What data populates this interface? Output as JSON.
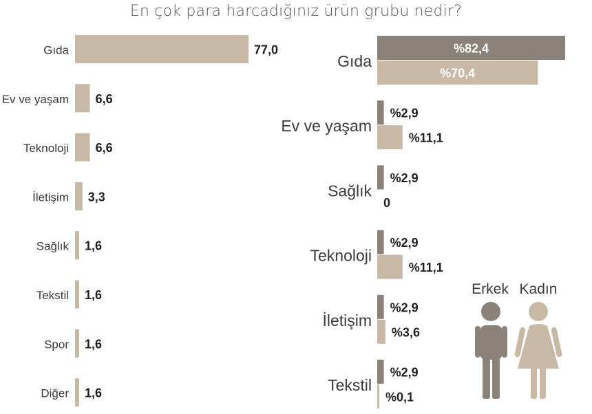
{
  "title": "En çok para harcadığınız ürün grubu nedir?",
  "colors": {
    "male": "#8a8278",
    "female": "#c8b9a6"
  },
  "chart_data": [
    {
      "type": "bar",
      "orientation": "horizontal",
      "categories": [
        "Gıda",
        "Ev ve yaşam",
        "Teknoloji",
        "İletişim",
        "Sağlık",
        "Tekstil",
        "Spor",
        "Diğer"
      ],
      "values": [
        77.0,
        6.6,
        6.6,
        3.3,
        1.6,
        1.6,
        1.6,
        1.6
      ],
      "labels": [
        "77,0",
        "6,6",
        "6,6",
        "3,3",
        "1,6",
        "1,6",
        "1,6",
        "1,6"
      ],
      "xlim": [
        0,
        77
      ]
    },
    {
      "type": "bar",
      "orientation": "horizontal",
      "categories": [
        "Gıda",
        "Ev ve yaşam",
        "Sağlık",
        "Teknoloji",
        "İletişim",
        "Tekstil"
      ],
      "series": [
        {
          "name": "Erkek",
          "values": [
            82.4,
            2.9,
            2.9,
            2.9,
            2.9,
            2.9
          ],
          "labels": [
            "%82,4",
            "%2,9",
            "%2,9",
            "%2,9",
            "%2,9",
            "%2,9"
          ]
        },
        {
          "name": "Kadın",
          "values": [
            70.4,
            11.1,
            0,
            11.1,
            3.6,
            0.1
          ],
          "labels": [
            "%70,4",
            "%11,1",
            "0",
            "%11,1",
            "%3,6",
            "%0,1"
          ]
        }
      ],
      "xlim": [
        0,
        82.4
      ],
      "legend": "bottom-right"
    }
  ],
  "legend": {
    "male_label": "Erkek",
    "female_label": "Kadın"
  }
}
